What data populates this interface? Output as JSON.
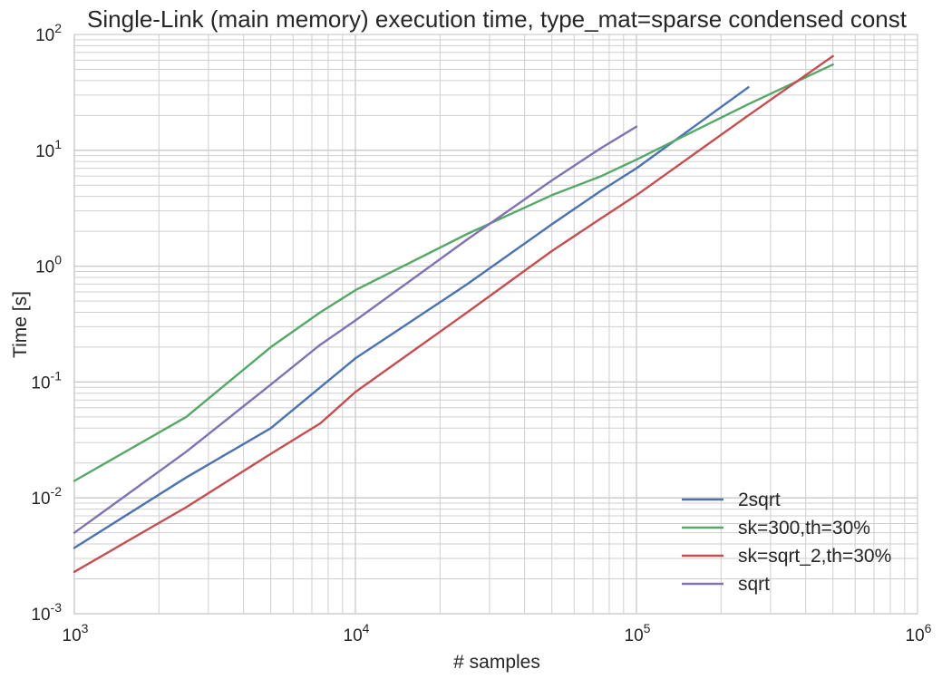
{
  "chart_data": {
    "type": "line",
    "title": "Single-Link (main memory) execution time, type_mat=sparse condensed const",
    "xlabel": "# samples",
    "ylabel": "Time [s]",
    "xscale": "log",
    "yscale": "log",
    "xlim": [
      1000,
      1000000
    ],
    "ylim": [
      0.001,
      100
    ],
    "grid": true,
    "legend_position": "lower-right",
    "x_ticks": [
      {
        "value": 1000,
        "base": "10",
        "exp": "3"
      },
      {
        "value": 10000,
        "base": "10",
        "exp": "4"
      },
      {
        "value": 100000,
        "base": "10",
        "exp": "5"
      },
      {
        "value": 1000000,
        "base": "10",
        "exp": "6"
      }
    ],
    "y_ticks": [
      {
        "value": 0.001,
        "base": "10",
        "exp": "-3"
      },
      {
        "value": 0.01,
        "base": "10",
        "exp": "-2"
      },
      {
        "value": 0.1,
        "base": "10",
        "exp": "-1"
      },
      {
        "value": 1,
        "base": "10",
        "exp": "0"
      },
      {
        "value": 10,
        "base": "10",
        "exp": "1"
      },
      {
        "value": 100,
        "base": "10",
        "exp": "2"
      }
    ],
    "series": [
      {
        "name": "2sqrt",
        "color": "#4c72b0",
        "x": [
          1000,
          2500,
          5000,
          7500,
          10000,
          25000,
          50000,
          75000,
          100000,
          250000
        ],
        "y": [
          0.0037,
          0.015,
          0.04,
          0.09,
          0.16,
          0.7,
          2.3,
          4.5,
          7,
          35
        ]
      },
      {
        "name": "sk=300,th=30%",
        "color": "#55a868",
        "x": [
          1000,
          2500,
          5000,
          7500,
          10000,
          25000,
          50000,
          75000,
          100000,
          250000,
          500000
        ],
        "y": [
          0.014,
          0.05,
          0.2,
          0.4,
          0.62,
          1.9,
          4.1,
          6,
          8.3,
          25,
          55
        ]
      },
      {
        "name": "sk=sqrt_2,th=30%",
        "color": "#c44e52",
        "x": [
          1000,
          2500,
          5000,
          7500,
          10000,
          25000,
          50000,
          75000,
          100000,
          250000,
          500000
        ],
        "y": [
          0.0023,
          0.0083,
          0.024,
          0.044,
          0.082,
          0.4,
          1.35,
          2.6,
          4.1,
          20,
          65
        ]
      },
      {
        "name": "sqrt",
        "color": "#8172b2",
        "x": [
          1000,
          2500,
          5000,
          7500,
          10000,
          25000,
          50000,
          75000,
          100000
        ],
        "y": [
          0.005,
          0.025,
          0.095,
          0.21,
          0.34,
          1.7,
          5.5,
          10.5,
          16
        ]
      }
    ]
  }
}
